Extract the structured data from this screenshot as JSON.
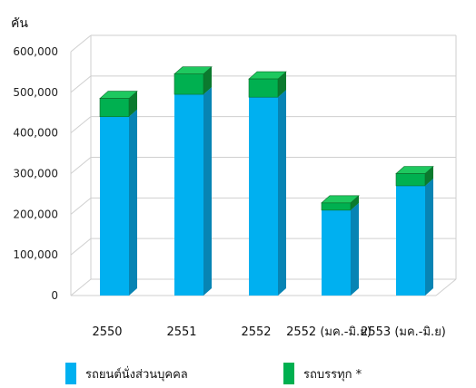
{
  "chart_data": {
    "type": "bar",
    "stacked": true,
    "style": "3d",
    "unit_label": "คัน",
    "categories": [
      "2550",
      "2551",
      "2552",
      "2552 (มค.-มิ.ย)",
      "2553 (มค.-มิ.ย)"
    ],
    "series": [
      {
        "name": "รถยนต์นั่งส่วนบุคคล",
        "color": "#00b0f0",
        "side_color": "#0784b4",
        "values": [
          440000,
          495000,
          488000,
          210000,
          270000
        ]
      },
      {
        "name": "รถบรรทุก *",
        "color": "#00b050",
        "side_color": "#0b7a2e",
        "values": [
          45000,
          50000,
          45000,
          18000,
          30000
        ]
      }
    ],
    "ylim": [
      0,
      600000
    ],
    "yticks": [
      "0",
      "100,000",
      "200,000",
      "300,000",
      "400,000",
      "500,000",
      "600,000"
    ],
    "grid": true,
    "legend_position": "bottom"
  }
}
